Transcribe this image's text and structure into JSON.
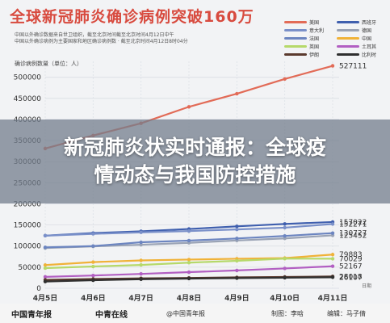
{
  "headline": "全球新冠肺炎确诊病例突破160万",
  "source_note": [
    "中国以外确诊数据来自世卫组织，截至北京时间截至北京时间4月12日中午",
    "中国以外确诊病例为主要国家和地区确诊病例数 · 截至北京时间4月12日8时04分"
  ],
  "unit_label": "确诊病例数量（单位：人）",
  "banner": {
    "line1": "新冠肺炎状实时通报：全球疫",
    "line2": "情动态与我国防控措施"
  },
  "footer": {
    "brand_left": "中国青年报",
    "brand_mid": "中青在线",
    "brand_right": "中青在线",
    "weibo": "@中国青年报",
    "producer": "制图：李晗",
    "editor": "编辑：马子倩"
  },
  "colors": {
    "series1": "#e26b57",
    "series2": "#3f5fae",
    "series3": "#7a90c9",
    "series4": "#f0b238",
    "series5": "#b6d96a",
    "series6": "#b25fc2",
    "series7": "#5b3a2e",
    "series8": "#2f2f2f"
  },
  "chart_data": {
    "type": "line",
    "title": "全球新冠肺炎确诊病例突破160万",
    "xlabel": "日期",
    "ylabel": "确诊病例数量（单位：人）",
    "categories": [
      "4月5日",
      "4月6日",
      "4月7日",
      "4月8日",
      "4月9日",
      "4月10日",
      "4月11日"
    ],
    "yticks": [
      0,
      50000,
      100000,
      150000,
      200000,
      250000,
      300000,
      350000,
      400000,
      450000,
      500000
    ],
    "ylim": [
      0,
      530000
    ],
    "grid": true,
    "legend_position": "top-right",
    "series": [
      {
        "name": "美国",
        "color": "#e26b57",
        "values": [
          331234,
          362000,
          391000,
          430000,
          461000,
          496000,
          527111
        ],
        "end_label": "527111"
      },
      {
        "name": "西班牙",
        "color": "#3f5fae",
        "values": [
          124736,
          130759,
          135032,
          140510,
          146690,
          152446,
          157022
        ],
        "end_label": "157022"
      },
      {
        "name": "意大利",
        "color": "#7a90c9",
        "values": [
          124632,
          128948,
          132547,
          135586,
          139422,
          143626,
          152271
        ],
        "end_label": "152271"
      },
      {
        "name": "德国",
        "color": "#9aa3b5",
        "values": [
          95391,
          99225,
          103228,
          107663,
          113296,
          118181,
          125452
        ],
        "end_label": "125452"
      },
      {
        "name": "法国",
        "color": "#6c85c0",
        "values": [
          97000,
          100000,
          109000,
          113000,
          118000,
          124000,
          130727
        ],
        "end_label": "130727"
      },
      {
        "name": "中国",
        "color": "#f0b238",
        "values": [
          55000,
          62000,
          66000,
          68000,
          70000,
          71500,
          79883
        ],
        "end_label": "79883"
      },
      {
        "name": "英国",
        "color": "#b6d96a",
        "values": [
          47806,
          51608,
          55242,
          60733,
          65077,
          70272,
          70029
        ],
        "end_label": "70029"
      },
      {
        "name": "土耳其",
        "color": "#b25fc2",
        "values": [
          27069,
          30217,
          34109,
          38226,
          42282,
          47029,
          52167
        ],
        "end_label": "52167"
      },
      {
        "name": "伊朗",
        "color": "#5b3a2e",
        "values": [
          20000,
          22000,
          23500,
          24500,
          25800,
          26800,
          28018
        ],
        "end_label": "28018"
      },
      {
        "name": "比利时",
        "color": "#2f2f2f",
        "values": [
          16000,
          19000,
          21500,
          23000,
          24000,
          25000,
          26107
        ],
        "end_label": "26107"
      }
    ]
  }
}
